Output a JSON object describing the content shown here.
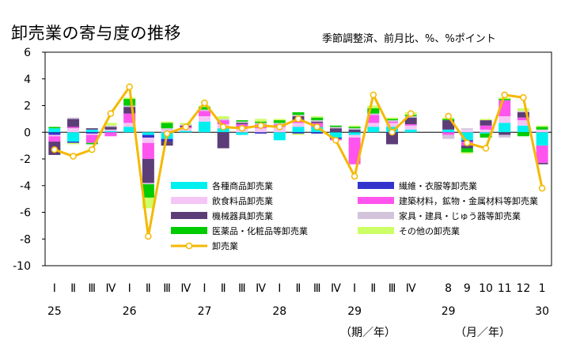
{
  "title": "卸売業の寄与度の推移",
  "subtitle": "季節調整済、前月比、%、%ポイント",
  "colors": {
    "各種商品卸売業": "#00f0f0",
    "繊維・衣服等卸売業": "#3333cc",
    "飲食料品卸売業": "#f5c6f5",
    "建築材料，鉱物・金属材料等卸売業": "#ff55ee",
    "機械器具卸売業": "#5c3d78",
    "家具・建具・じゅう器等卸売業": "#d3c4dc",
    "医薬品・化粧品等卸売業": "#00cc00",
    "その他の卸売業": "#ccff66",
    "卸売業": "#f5b800"
  },
  "chart_data": {
    "type": "bar",
    "stacked": true,
    "ylim": [
      -10,
      6
    ],
    "yticks": [
      6,
      4,
      2,
      0,
      -2,
      -4,
      -6,
      -8,
      -10
    ],
    "grid": false,
    "legend_position": "lower-center (inside plot)",
    "categories": [
      "Ⅰ",
      "Ⅱ",
      "Ⅲ",
      "Ⅳ",
      "Ⅰ",
      "Ⅱ",
      "Ⅲ",
      "Ⅳ",
      "Ⅰ",
      "Ⅱ",
      "Ⅲ",
      "Ⅳ",
      "Ⅰ",
      "Ⅱ",
      "Ⅲ",
      "Ⅳ",
      "Ⅰ",
      "Ⅱ",
      "Ⅲ",
      "Ⅳ",
      "",
      "8",
      "9",
      "10",
      "11",
      "12",
      "1"
    ],
    "year_labels": [
      {
        "label": "25",
        "at_index": 0
      },
      {
        "label": "26",
        "at_index": 4
      },
      {
        "label": "27",
        "at_index": 8
      },
      {
        "label": "28",
        "at_index": 12
      },
      {
        "label": "29",
        "at_index": 16
      },
      {
        "label": "29",
        "at_index": 21
      },
      {
        "label": "30",
        "at_index": 26
      }
    ],
    "axis_note_quarterly": "（期／年）",
    "axis_note_monthly": "（月／年）",
    "series": [
      {
        "name": "各種商品卸売業",
        "values": [
          0.3,
          -0.7,
          0.2,
          0.1,
          0.4,
          -0.2,
          -0.5,
          0.1,
          0.8,
          0.3,
          -0.2,
          0,
          -0.6,
          0.4,
          0.4,
          -0.4,
          -0.2,
          0.4,
          0.4,
          0.2,
          null,
          0.2,
          -0.6,
          -0.1,
          0.7,
          0.5,
          -1.0
        ]
      },
      {
        "name": "繊維・衣服等卸売業",
        "values": [
          -0.2,
          -0.1,
          -0.1,
          0,
          0,
          -0.2,
          -0.2,
          0,
          0,
          0,
          0,
          -0.1,
          0,
          -0.1,
          -0.1,
          -0.1,
          0,
          0,
          -0.1,
          0,
          null,
          0,
          -0.1,
          0,
          0,
          0,
          0
        ]
      },
      {
        "name": "飲食料品卸売業",
        "values": [
          -0.1,
          0.3,
          -0.1,
          0.1,
          0.3,
          -0.4,
          0.2,
          0.2,
          0.4,
          0.3,
          0.4,
          0.3,
          0.4,
          0.3,
          0,
          0,
          -0.2,
          0.3,
          0.3,
          0.3,
          null,
          0,
          0.2,
          0.2,
          0.5,
          0.4,
          0.2
        ]
      },
      {
        "name": "建築材料，鉱物・金属材料等卸売業",
        "values": [
          -0.4,
          0.1,
          -0.6,
          -0.3,
          0.7,
          -1.2,
          0,
          0.1,
          0.4,
          0.3,
          0.2,
          0.3,
          0.2,
          0.2,
          0.3,
          -0.1,
          -2.0,
          0.6,
          0.1,
          0.1,
          null,
          -0.2,
          -0.3,
          0.3,
          1.2,
          0.2,
          -1.3
        ]
      },
      {
        "name": "機械器具卸売業",
        "values": [
          -1.0,
          0.6,
          0.1,
          0.2,
          0.5,
          -1.8,
          -0.3,
          0.1,
          0,
          -1.2,
          0.1,
          0,
          0,
          0.3,
          0.1,
          0.3,
          0.2,
          0,
          -0.8,
          0.5,
          null,
          0.7,
          -0.2,
          0.4,
          -0.2,
          0.4,
          -0.1
        ]
      },
      {
        "name": "家具・建具・じゅう器等卸売業",
        "values": [
          0,
          0.1,
          0,
          0.1,
          0.1,
          -0.1,
          0.1,
          0.1,
          0.1,
          0.1,
          0.1,
          0.1,
          0.1,
          0.1,
          0.1,
          0.1,
          0.1,
          0.1,
          0.1,
          0.1,
          null,
          -0.3,
          0.1,
          0,
          -0.2,
          0.1,
          0
        ]
      },
      {
        "name": "医薬品・化粧品等卸売業",
        "values": [
          0.1,
          0,
          -0.1,
          0,
          0.5,
          -1.0,
          0.4,
          0,
          0.2,
          0,
          0.1,
          0.1,
          0.2,
          0.2,
          0.2,
          0.1,
          0.1,
          0.4,
          0.1,
          0.1,
          null,
          0.1,
          -0.3,
          -0.3,
          0.1,
          -0.3,
          0.2
        ]
      },
      {
        "name": "その他の卸売業",
        "values": [
          0,
          -0.1,
          0,
          0.2,
          0.1,
          -0.8,
          0.1,
          0.1,
          0.1,
          0.2,
          0,
          0.2,
          0.1,
          -0.1,
          0.1,
          0,
          0.1,
          0.2,
          0.1,
          0.2,
          null,
          0.1,
          -0.1,
          0.1,
          0.1,
          0.2,
          0.1
        ]
      },
      {
        "name": "卸売業",
        "type": "line",
        "values": [
          -1.3,
          -1.8,
          -1.3,
          1.4,
          3.4,
          -7.8,
          -0.1,
          0.4,
          2.2,
          0.4,
          0.3,
          0.5,
          0.4,
          1.0,
          0.4,
          -0.6,
          -3.3,
          2.8,
          0.0,
          1.4,
          null,
          1.2,
          -0.8,
          -1.2,
          2.8,
          2.6,
          -4.2
        ]
      }
    ]
  }
}
